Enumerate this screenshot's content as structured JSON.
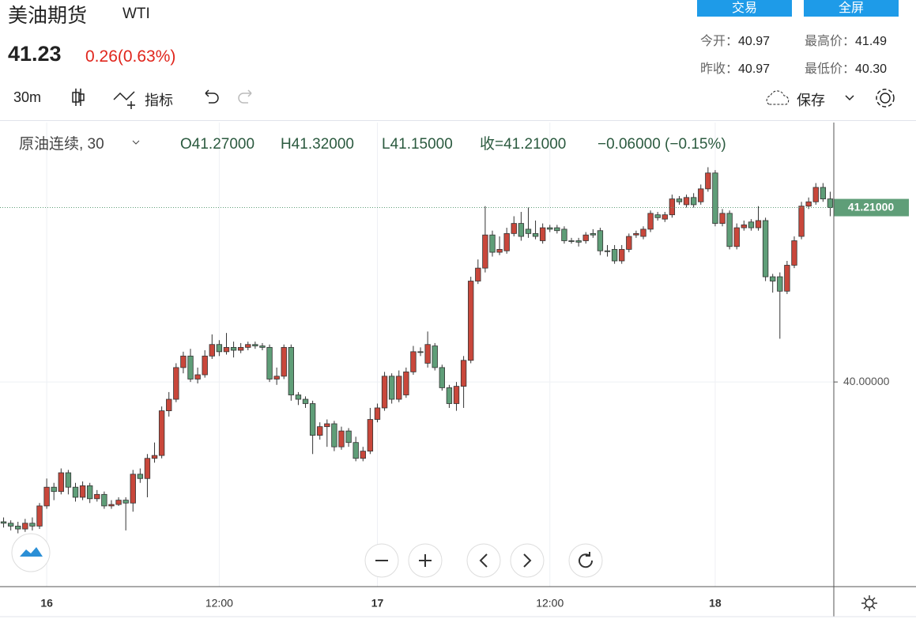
{
  "header": {
    "title": "美油期货",
    "symbol": "WTI",
    "price": "41.23",
    "change": "0.26(0.63%)",
    "buttons": [
      "交易",
      "全屏"
    ],
    "stats": [
      {
        "label": "今开：",
        "value": "40.97"
      },
      {
        "label": "最高价：",
        "value": "41.49"
      },
      {
        "label": "昨收：",
        "value": "40.97"
      },
      {
        "label": "最低价：",
        "value": "40.30"
      }
    ]
  },
  "toolbar": {
    "interval": "30m",
    "indicators": "指标",
    "save": "保存"
  },
  "legend": {
    "name": "原油连续, 30",
    "open": "O41.27000",
    "high": "H41.32000",
    "low": "L41.15000",
    "close": "收=41.21000",
    "change": "−0.06000 (−0.15%)"
  },
  "chart_data": {
    "type": "candlestick",
    "categories": [
      null,
      null,
      null,
      null,
      null,
      null,
      "16",
      null,
      null,
      null,
      null,
      null,
      null,
      null,
      null,
      null,
      null,
      null,
      null,
      null,
      null,
      null,
      null,
      null,
      null,
      null,
      null,
      null,
      null,
      null,
      "12:00",
      null,
      null,
      null,
      null,
      null,
      null,
      null,
      null,
      null,
      null,
      null,
      null,
      null,
      null,
      null,
      null,
      null,
      null,
      null,
      null,
      null,
      "17",
      null,
      null,
      null,
      null,
      null,
      null,
      null,
      null,
      null,
      null,
      null,
      null,
      null,
      null,
      null,
      null,
      null,
      null,
      null,
      null,
      null,
      null,
      null,
      "12:00",
      null,
      null,
      null,
      null,
      null,
      null,
      null,
      null,
      null,
      null,
      null,
      null,
      null,
      null,
      null,
      null,
      null,
      null,
      null,
      null,
      null,
      null,
      "18",
      null,
      null,
      null,
      null,
      null,
      null,
      null,
      null,
      null,
      null,
      null,
      null,
      null,
      null,
      null,
      null
    ],
    "open": [
      39.03,
      39.02,
      39.0,
      38.98,
      39.02,
      39.0,
      39.14,
      39.27,
      39.24,
      39.37,
      39.27,
      39.2,
      39.28,
      39.19,
      39.22,
      39.14,
      39.15,
      39.18,
      39.16,
      39.36,
      39.33,
      39.47,
      39.49,
      39.8,
      39.88,
      40.1,
      40.18,
      40.02,
      40.05,
      40.18,
      40.26,
      40.21,
      40.24,
      40.22,
      40.24,
      40.26,
      40.25,
      40.24,
      40.02,
      40.04,
      40.24,
      39.91,
      39.88,
      39.85,
      39.63,
      39.69,
      39.71,
      39.55,
      39.66,
      39.58,
      39.47,
      39.52,
      39.74,
      39.82,
      40.04,
      39.88,
      39.91,
      40.07,
      40.21,
      40.13,
      40.25,
      40.1,
      39.96,
      39.85,
      39.97,
      40.15,
      40.7,
      40.79,
      41.02,
      40.9,
      40.91,
      41.03,
      41.1,
      41.06,
      41.03,
      40.98,
      41.07,
      41.07,
      41.06,
      40.98,
      40.98,
      40.98,
      41.03,
      41.05,
      40.91,
      40.92,
      40.84,
      40.92,
      41.02,
      41.01,
      41.06,
      41.16,
      41.13,
      41.16,
      41.27,
      41.23,
      41.28,
      41.25,
      41.34,
      41.45,
      41.1,
      41.17,
      40.94,
      41.07,
      41.11,
      41.07,
      41.12,
      40.73,
      40.73,
      40.63,
      40.81,
      41.01,
      41.22,
      41.25,
      41.35,
      41.27
    ],
    "high": [
      39.06,
      39.04,
      39.03,
      39.05,
      39.06,
      39.16,
      39.33,
      39.3,
      39.4,
      39.39,
      39.3,
      39.31,
      39.3,
      39.25,
      39.24,
      39.18,
      39.2,
      39.2,
      39.39,
      39.4,
      39.5,
      39.58,
      39.83,
      39.93,
      40.13,
      40.21,
      40.23,
      40.1,
      40.22,
      40.33,
      40.29,
      40.34,
      40.28,
      40.27,
      40.28,
      40.28,
      40.27,
      40.26,
      40.1,
      40.26,
      40.26,
      39.93,
      39.9,
      39.87,
      39.72,
      39.74,
      39.73,
      39.69,
      39.68,
      39.62,
      39.55,
      39.82,
      39.85,
      40.07,
      40.06,
      40.08,
      40.1,
      40.25,
      40.24,
      40.35,
      40.27,
      40.12,
      39.98,
      40.0,
      40.18,
      40.73,
      40.85,
      41.22,
      41.05,
      41.01,
      41.07,
      41.15,
      41.18,
      41.21,
      41.12,
      41.1,
      41.09,
      41.09,
      41.08,
      41.0,
      41.0,
      41.04,
      41.06,
      41.07,
      40.95,
      40.95,
      40.95,
      41.03,
      41.05,
      41.08,
      41.19,
      41.18,
      41.18,
      41.3,
      41.29,
      41.3,
      41.31,
      41.37,
      41.49,
      41.47,
      41.2,
      41.19,
      41.1,
      41.12,
      41.13,
      41.22,
      41.14,
      40.75,
      40.76,
      40.84,
      41.01,
      41.25,
      41.28,
      41.38,
      41.38,
      41.32
    ],
    "low": [
      38.99,
      38.97,
      38.95,
      38.96,
      38.97,
      38.98,
      39.12,
      39.18,
      39.22,
      39.22,
      39.17,
      39.18,
      39.16,
      39.17,
      39.12,
      39.12,
      39.14,
      38.97,
      39.1,
      39.3,
      39.2,
      39.44,
      39.47,
      39.76,
      39.86,
      40.06,
      40.0,
      39.99,
      40.03,
      40.16,
      40.18,
      40.19,
      40.17,
      40.2,
      40.22,
      40.23,
      40.22,
      40.0,
      39.98,
      40.02,
      39.87,
      39.84,
      39.82,
      39.5,
      39.6,
      39.55,
      39.52,
      39.53,
      39.55,
      39.45,
      39.45,
      39.5,
      39.72,
      39.8,
      39.85,
      39.86,
      39.89,
      40.05,
      40.18,
      40.1,
      40.08,
      39.94,
      39.82,
      39.8,
      39.82,
      40.13,
      40.68,
      40.76,
      40.87,
      40.88,
      40.89,
      41.01,
      40.98,
      41.0,
      40.99,
      40.96,
      41.04,
      41.03,
      40.96,
      40.96,
      40.94,
      40.96,
      41.0,
      40.88,
      40.87,
      40.82,
      40.82,
      40.9,
      41.0,
      40.99,
      41.04,
      41.12,
      41.11,
      41.14,
      41.23,
      41.21,
      41.21,
      41.23,
      41.32,
      41.08,
      41.08,
      40.92,
      40.92,
      41.05,
      41.05,
      41.05,
      40.7,
      40.62,
      40.3,
      40.61,
      40.79,
      40.99,
      41.2,
      41.23,
      41.25,
      41.15
    ],
    "close": [
      39.02,
      39.0,
      38.98,
      39.02,
      39.0,
      39.14,
      39.27,
      39.24,
      39.37,
      39.27,
      39.2,
      39.28,
      39.19,
      39.22,
      39.14,
      39.15,
      39.18,
      39.16,
      39.36,
      39.33,
      39.47,
      39.49,
      39.8,
      39.88,
      40.1,
      40.18,
      40.02,
      40.05,
      40.18,
      40.26,
      40.21,
      40.24,
      40.22,
      40.24,
      40.26,
      40.25,
      40.24,
      40.02,
      40.04,
      40.24,
      39.91,
      39.88,
      39.85,
      39.63,
      39.69,
      39.71,
      39.55,
      39.66,
      39.58,
      39.47,
      39.52,
      39.74,
      39.82,
      40.04,
      39.88,
      40.04,
      40.07,
      40.21,
      40.21,
      40.26,
      40.1,
      39.96,
      39.85,
      39.97,
      40.15,
      40.7,
      40.79,
      41.02,
      40.9,
      40.92,
      41.03,
      41.1,
      41.01,
      41.03,
      41.01,
      41.07,
      41.06,
      41.05,
      40.98,
      40.98,
      40.97,
      41.02,
      41.02,
      40.91,
      40.91,
      40.84,
      40.92,
      41.01,
      41.03,
      41.06,
      41.17,
      41.14,
      41.16,
      41.27,
      41.25,
      41.28,
      41.23,
      41.34,
      41.45,
      41.1,
      41.17,
      40.94,
      41.07,
      41.09,
      41.07,
      41.12,
      40.73,
      40.7,
      40.63,
      40.81,
      40.98,
      41.22,
      41.25,
      41.35,
      41.27,
      41.21
    ],
    "up_color": "#c9473b",
    "down_color": "#5f9e78",
    "ylim": [
      38.58,
      41.8
    ],
    "yticks": [
      {
        "value": 40,
        "label": "40.00000"
      }
    ],
    "last_price": {
      "value": 41.21,
      "label": "41.21000"
    },
    "grid": true
  }
}
